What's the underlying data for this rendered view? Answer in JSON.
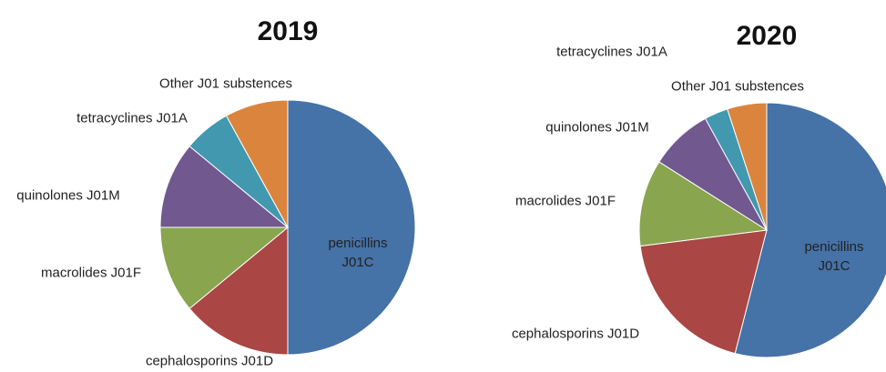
{
  "chart_data": [
    {
      "type": "pie",
      "title": "2019",
      "categories": [
        "penicillins J01C",
        "cephalosporins J01D",
        "macrolides J01F",
        "quinolones J01M",
        "tetracyclines J01A",
        "Other J01 substences"
      ],
      "values": [
        50,
        14,
        11,
        11,
        6,
        8
      ],
      "colors": [
        "#4572a7",
        "#aa4643",
        "#89a54e",
        "#71588f",
        "#4198af",
        "#db843d"
      ]
    },
    {
      "type": "pie",
      "title": "2020",
      "categories": [
        "penicillins J01C",
        "cephalosporins J01D",
        "macrolides J01F",
        "quinolones J01M",
        "tetracyclines J01A",
        "Other J01 substences"
      ],
      "values": [
        54,
        19,
        11,
        8,
        3,
        5
      ],
      "colors": [
        "#4572a7",
        "#aa4643",
        "#89a54e",
        "#71588f",
        "#4198af",
        "#db843d"
      ]
    }
  ]
}
